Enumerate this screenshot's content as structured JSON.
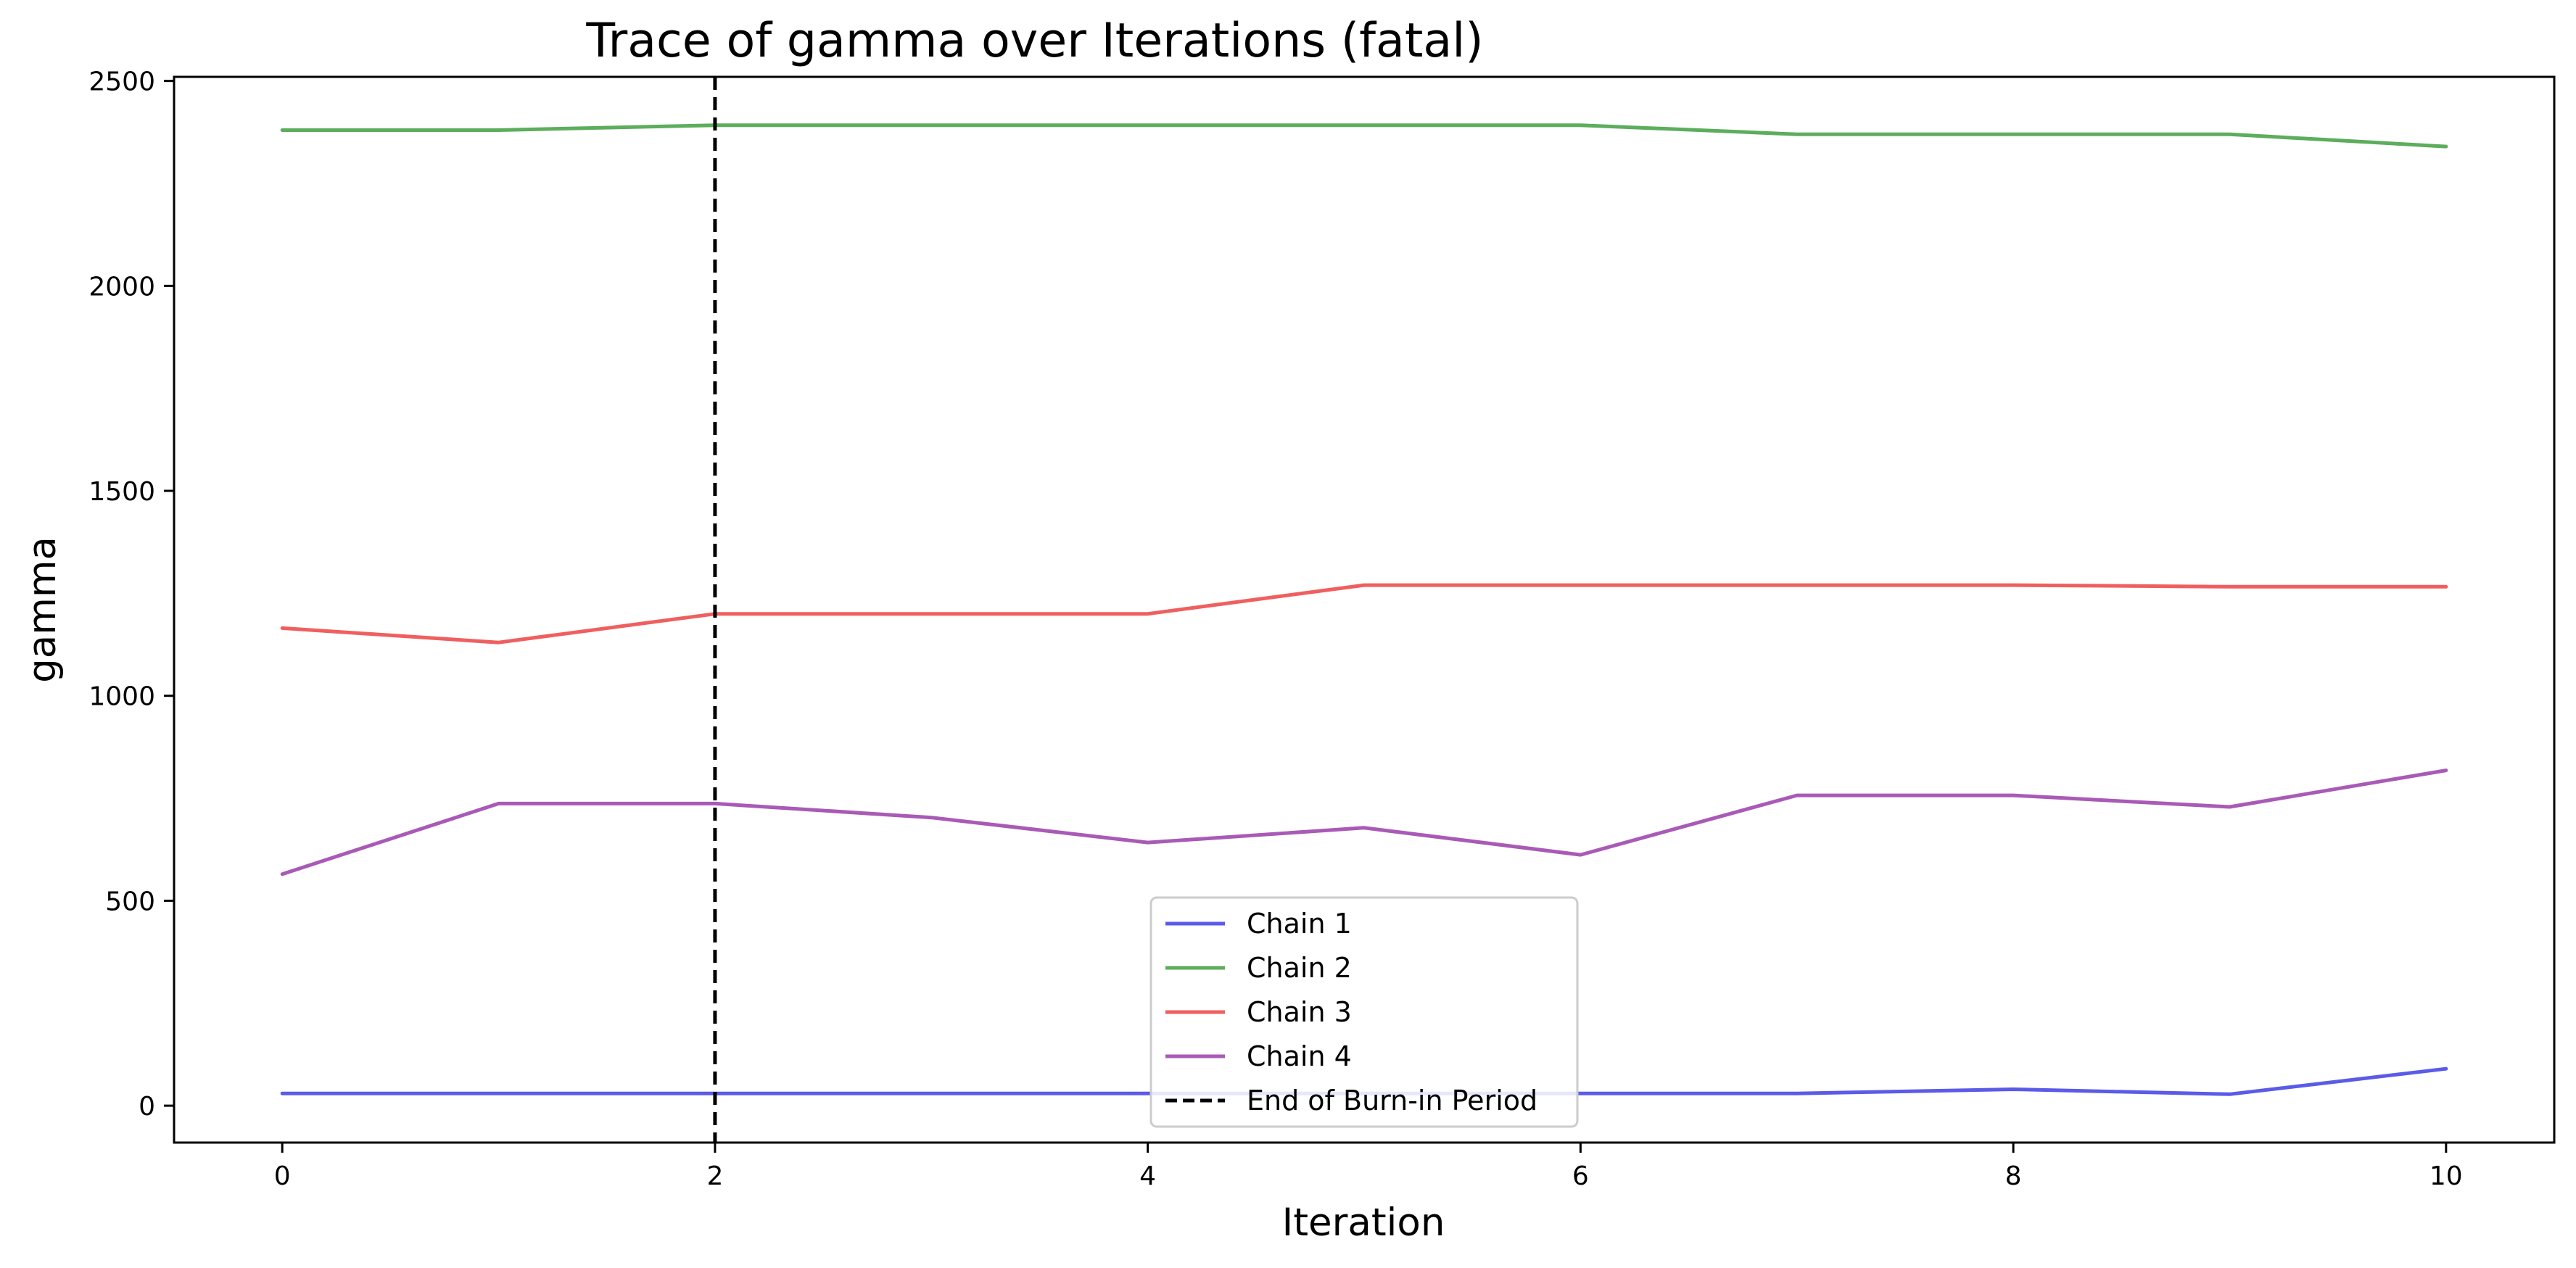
{
  "chart_data": {
    "type": "line",
    "title": "Trace of gamma over Iterations (fatal)",
    "xlabel": "Iteration",
    "ylabel": "gamma",
    "xlim": [
      -0.5,
      10.5
    ],
    "ylim": [
      -90,
      2510
    ],
    "xticks": [
      0,
      2,
      4,
      6,
      8,
      10
    ],
    "yticks": [
      0,
      500,
      1000,
      1500,
      2000,
      2500
    ],
    "x": [
      0,
      1,
      2,
      3,
      4,
      5,
      6,
      7,
      8,
      9,
      10
    ],
    "series": [
      {
        "name": "Chain 1",
        "color": "#5b5be8",
        "values": [
          30,
          30,
          30,
          30,
          30,
          30,
          30,
          30,
          40,
          28,
          90
        ]
      },
      {
        "name": "Chain 2",
        "color": "#5cad5c",
        "values": [
          2380,
          2380,
          2392,
          2392,
          2392,
          2392,
          2392,
          2370,
          2370,
          2370,
          2340
        ]
      },
      {
        "name": "Chain 3",
        "color": "#f05f5f",
        "values": [
          1165,
          1130,
          1200,
          1200,
          1200,
          1270,
          1270,
          1270,
          1270,
          1266,
          1266
        ]
      },
      {
        "name": "Chain 4",
        "color": "#a95ab6",
        "values": [
          565,
          737,
          737,
          703,
          642,
          678,
          612,
          757,
          757,
          729,
          818
        ]
      }
    ],
    "vline": {
      "x": 2,
      "name": "End of Burn-in Period",
      "color": "#000000",
      "style": "dashed"
    },
    "legend_position": "lower-center",
    "grid": false
  }
}
